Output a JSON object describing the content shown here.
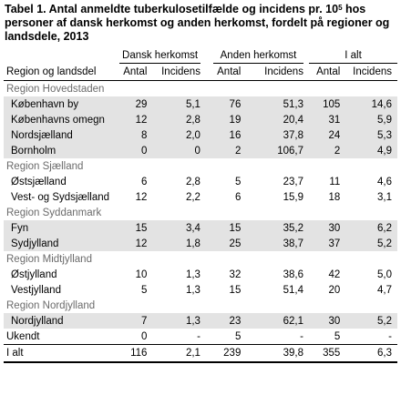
{
  "title": {
    "text": "Tabel 1. Antal anmeldte tuberkulosetilfælde og incidens pr. 10",
    "sup": "5",
    "rest": " hos personer af dansk herkomst og anden herkomst, fordelt på regioner og landsdele, 2013"
  },
  "headers": {
    "group1": "Dansk herkomst",
    "group2": "Anden herkomst",
    "group3": "I alt",
    "col_region": "Region og landsdel",
    "antal": "Antal",
    "incidens": "Incidens"
  },
  "rows": [
    {
      "type": "region",
      "label": "Region Hovedstaden"
    },
    {
      "type": "data",
      "shade": true,
      "label": "København by",
      "v": [
        "29",
        "5,1",
        "76",
        "51,3",
        "105",
        "14,6"
      ]
    },
    {
      "type": "data",
      "shade": true,
      "label": "Københavns omegn",
      "v": [
        "12",
        "2,8",
        "19",
        "20,4",
        "31",
        "5,9"
      ]
    },
    {
      "type": "data",
      "shade": true,
      "label": "Nordsjælland",
      "v": [
        "8",
        "2,0",
        "16",
        "37,8",
        "24",
        "5,3"
      ]
    },
    {
      "type": "data",
      "shade": true,
      "label": "Bornholm",
      "v": [
        "0",
        "0",
        "2",
        "106,7",
        "2",
        "4,9"
      ]
    },
    {
      "type": "region",
      "label": "Region Sjælland"
    },
    {
      "type": "data",
      "shade": false,
      "label": "Østsjælland",
      "v": [
        "6",
        "2,8",
        "5",
        "23,7",
        "11",
        "4,6"
      ]
    },
    {
      "type": "data",
      "shade": false,
      "label": "Vest- og Sydsjælland",
      "v": [
        "12",
        "2,2",
        "6",
        "15,9",
        "18",
        "3,1"
      ]
    },
    {
      "type": "region",
      "label": "Region Syddanmark"
    },
    {
      "type": "data",
      "shade": true,
      "label": "Fyn",
      "v": [
        "15",
        "3,4",
        "15",
        "35,2",
        "30",
        "6,2"
      ]
    },
    {
      "type": "data",
      "shade": true,
      "label": "Sydjylland",
      "v": [
        "12",
        "1,8",
        "25",
        "38,7",
        "37",
        "5,2"
      ]
    },
    {
      "type": "region",
      "label": "Region Midtjylland"
    },
    {
      "type": "data",
      "shade": false,
      "label": "Østjylland",
      "v": [
        "10",
        "1,3",
        "32",
        "38,6",
        "42",
        "5,0"
      ]
    },
    {
      "type": "data",
      "shade": false,
      "label": "Vestjylland",
      "v": [
        "5",
        "1,3",
        "15",
        "51,4",
        "20",
        "4,7"
      ]
    },
    {
      "type": "region",
      "label": "Region Nordjylland"
    },
    {
      "type": "data",
      "shade": true,
      "label": "Nordjylland",
      "v": [
        "7",
        "1,3",
        "23",
        "62,1",
        "30",
        "5,2"
      ]
    },
    {
      "type": "plain",
      "shade": false,
      "label": "Ukendt",
      "v": [
        "0",
        "-",
        "5",
        "-",
        "5",
        "-"
      ]
    },
    {
      "type": "total",
      "shade": false,
      "label": "I alt",
      "v": [
        "116",
        "2,1",
        "239",
        "39,8",
        "355",
        "6,3"
      ]
    }
  ]
}
